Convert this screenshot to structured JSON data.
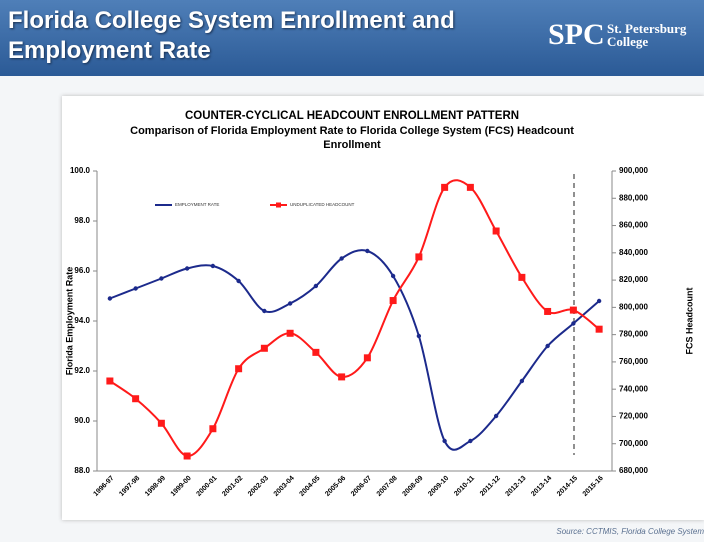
{
  "header": {
    "title": "Florida College System Enrollment and Employment Rate"
  },
  "logo": {
    "mark": "SPC",
    "name": "St. Petersburg College"
  },
  "source": "Source: CCTMIS, Florida College System",
  "chart_data": {
    "type": "line",
    "title": "COUNTER-CYCLICAL HEADCOUNT ENROLLMENT PATTERN",
    "subtitle": "Comparison of Florida Employment Rate to Florida College System (FCS) Headcount Enrollment",
    "y_label": "Florida Employment Rate",
    "y2_label": "FCS Headcount",
    "categories": [
      "1996-97",
      "1997-98",
      "1998-99",
      "1999-00",
      "2000-01",
      "2001-02",
      "2002-03",
      "2003-04",
      "2004-05",
      "2005-06",
      "2006-07",
      "2007-08",
      "2008-09",
      "2009-10",
      "2010-11",
      "2011-12",
      "2012-13",
      "2013-14",
      "2014-15",
      "2015-16"
    ],
    "series": [
      {
        "name": "EMPLOYMENT RATE",
        "color": "#1c2a8c",
        "marker": "circle",
        "values": [
          94.9,
          95.3,
          95.7,
          96.1,
          96.2,
          95.6,
          94.4,
          94.7,
          95.4,
          96.5,
          96.8,
          95.8,
          93.4,
          89.2,
          89.2,
          90.2,
          91.6,
          93.0,
          93.9,
          94.8
        ]
      },
      {
        "name": "UNDUPLICATED HEADCOUNT",
        "color": "#ff1a1a",
        "marker": "square",
        "axis": "y2",
        "values": [
          746000,
          733000,
          715000,
          691000,
          711000,
          755000,
          770000,
          781000,
          767000,
          749000,
          763000,
          805000,
          837000,
          888000,
          888000,
          856000,
          822000,
          797000,
          798000,
          784000
        ]
      }
    ],
    "ylim": [
      88,
      100
    ],
    "yticks": [
      {
        "value": 88,
        "label": "88.0"
      },
      {
        "value": 90,
        "label": "90.0"
      },
      {
        "value": 92,
        "label": "92.0"
      },
      {
        "value": 94,
        "label": "94.0"
      },
      {
        "value": 96,
        "label": "96.0"
      },
      {
        "value": 98,
        "label": "98.0"
      },
      {
        "value": 100,
        "label": "100.0"
      }
    ],
    "y2lim": [
      680000,
      900000
    ],
    "y2ticks": [
      {
        "value": 680000,
        "label": "680,000"
      },
      {
        "value": 700000,
        "label": "700,000"
      },
      {
        "value": 720000,
        "label": "720,000"
      },
      {
        "value": 740000,
        "label": "740,000"
      },
      {
        "value": 760000,
        "label": "760,000"
      },
      {
        "value": 780000,
        "label": "780,000"
      },
      {
        "value": 800000,
        "label": "800,000"
      },
      {
        "value": 820000,
        "label": "820,000"
      },
      {
        "value": 840000,
        "label": "840,000"
      },
      {
        "value": 860000,
        "label": "860,000"
      },
      {
        "value": 880000,
        "label": "880,000"
      },
      {
        "value": 900000,
        "label": "900,000"
      }
    ],
    "smooth": true,
    "grid": false
  }
}
